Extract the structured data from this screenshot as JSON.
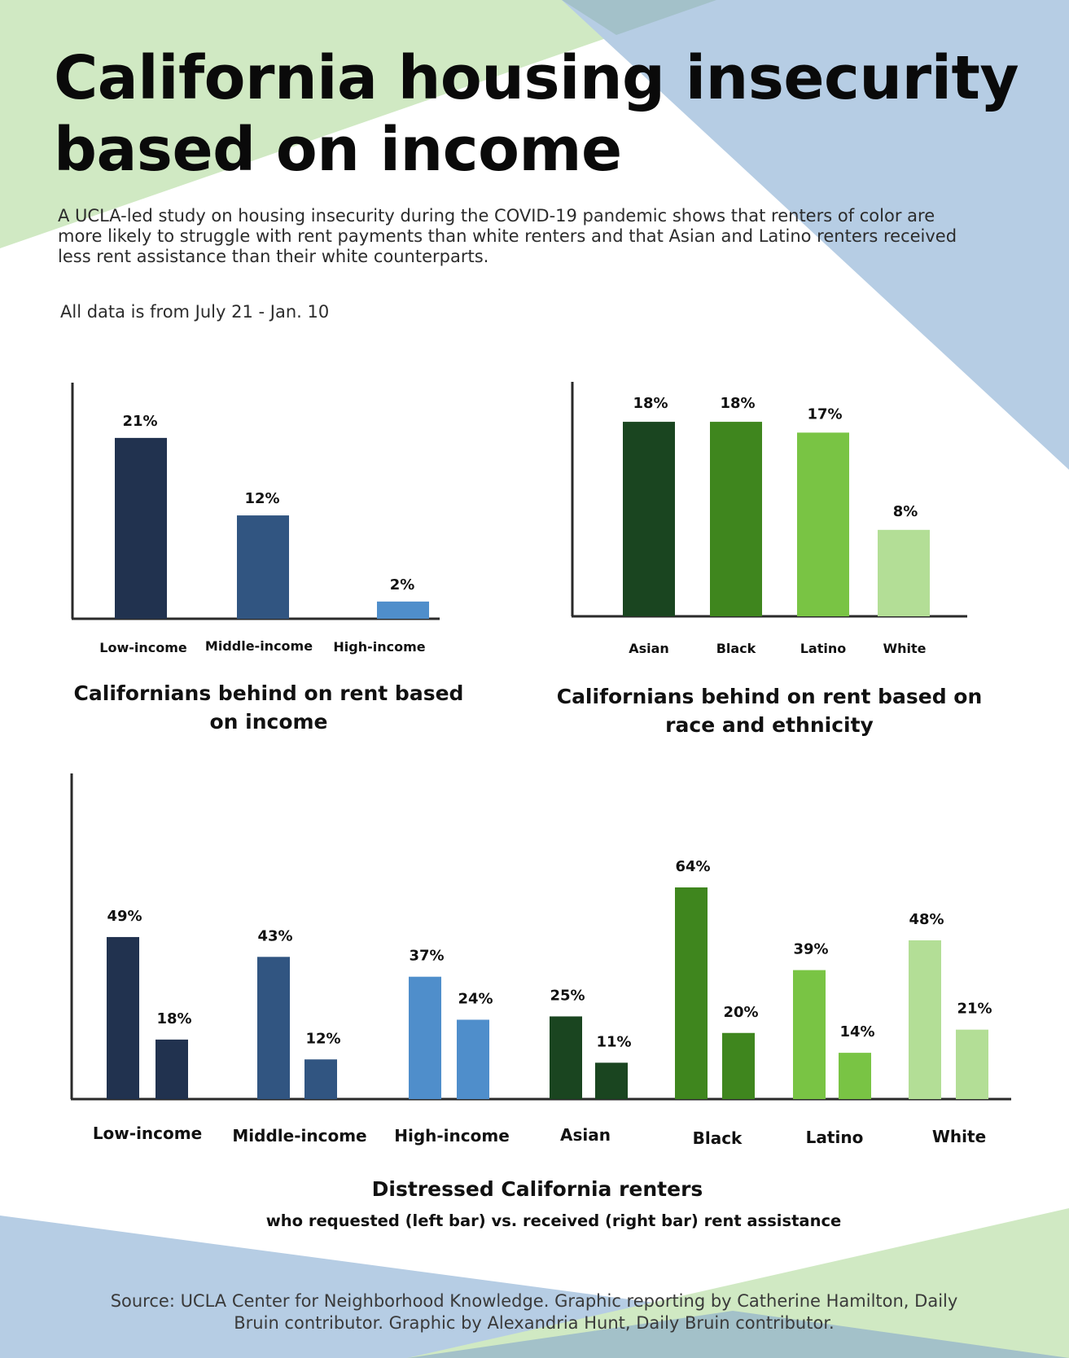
{
  "title": "California housing insecurity based on income",
  "intro": "A UCLA-led study on housing insecurity during the COVID-19 pandemic shows that renters of color are more likely to struggle with rent payments than white renters and that Asian and Latino renters received less rent assistance than their white counterparts.",
  "period_note": "All data is from July 21 - Jan. 10",
  "source": "Source: UCLA Center for Neighborhood Knowledge. Graphic reporting by Catherine Hamilton, Daily Bruin contributor. Graphic by Alexandria Hunt, Daily Bruin contributor.",
  "colors": {
    "low_income": "#21324f",
    "middle_income": "#315581",
    "high_income": "#4f8ecb",
    "asian": "#1a4520",
    "black": "#3f861e",
    "latino": "#79c444",
    "white": "#b3de96",
    "bg_green": "#d0e9c3",
    "bg_blue": "#b6cde4",
    "bg_overlap": "#a3c1c9"
  },
  "chart_data": [
    {
      "type": "bar",
      "title": "Californians behind on rent based on income",
      "categories": [
        "Low-income",
        "Middle-income",
        "High-income"
      ],
      "values": [
        21,
        12,
        2
      ],
      "labels": [
        "21%",
        "12%",
        "2%"
      ],
      "colors": [
        "#21324f",
        "#315581",
        "#4f8ecb"
      ],
      "ylim": [
        0,
        26
      ],
      "xlabel": "",
      "ylabel": ""
    },
    {
      "type": "bar",
      "title": "Californians behind on rent based on race and ethnicity",
      "categories": [
        "Asian",
        "Black",
        "Latino",
        "White"
      ],
      "values": [
        18,
        18,
        17,
        8
      ],
      "labels": [
        "18%",
        "18%",
        "17%",
        "8%"
      ],
      "colors": [
        "#1a4520",
        "#3f861e",
        "#79c444",
        "#b3de96"
      ],
      "ylim": [
        0,
        22
      ],
      "xlabel": "",
      "ylabel": ""
    },
    {
      "type": "bar",
      "title": "Distressed California renters",
      "subtitle": "who requested (left bar) vs. received (right bar) rent assistance",
      "categories": [
        "Low-income",
        "Middle-income",
        "High-income",
        "Asian",
        "Black",
        "Latino",
        "White"
      ],
      "colors": [
        "#21324f",
        "#315581",
        "#4f8ecb",
        "#1a4520",
        "#3f861e",
        "#79c444",
        "#b3de96"
      ],
      "series": [
        {
          "name": "Requested",
          "values": [
            49,
            43,
            37,
            25,
            64,
            39,
            48
          ],
          "labels": [
            "49%",
            "43%",
            "37%",
            "25%",
            "64%",
            "39%",
            "48%"
          ]
        },
        {
          "name": "Received",
          "values": [
            18,
            12,
            24,
            11,
            20,
            14,
            21
          ],
          "labels": [
            "18%",
            "12%",
            "24%",
            "11%",
            "20%",
            "14%",
            "21%"
          ]
        }
      ],
      "ylim": [
        0,
        75
      ],
      "xlabel": "",
      "ylabel": ""
    }
  ]
}
